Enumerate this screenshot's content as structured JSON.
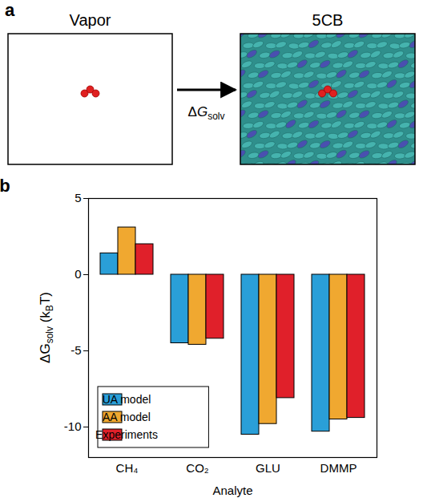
{
  "diagram": {
    "panel": "a",
    "left_box": {
      "label": "Vapor"
    },
    "right_box": {
      "label": "5CB"
    },
    "arrow": {
      "label": {
        "main": "ΔG",
        "subscript": "solv"
      }
    }
  },
  "chart_data": {
    "type": "bar",
    "panel": "b",
    "categories": [
      "CH₄",
      "CO₂",
      "GLU",
      "DMMP"
    ],
    "x_label": "Analyte",
    "y_label": [
      {
        "text": "ΔG"
      },
      {
        "text": "solv",
        "subscript": true
      },
      {
        "text": " (k"
      },
      {
        "text": "B",
        "subscript": true
      },
      {
        "text": "T)"
      }
    ],
    "series": [
      {
        "name": "UA model",
        "color": "#2a9fd8",
        "values": [
          1.4,
          -4.5,
          -10.5,
          -10.3
        ]
      },
      {
        "name": "AA model",
        "color": "#f0a830",
        "values": [
          3.1,
          -4.6,
          -9.8,
          -9.5
        ]
      },
      {
        "name": "Experiments",
        "color": "#e0202a",
        "values": [
          2.0,
          -4.2,
          -8.1,
          -9.4
        ]
      }
    ],
    "ylim": [
      -12,
      5
    ],
    "yticks": [
      5,
      0,
      -5,
      -10
    ],
    "grid": false,
    "legend": "bottom-left"
  }
}
